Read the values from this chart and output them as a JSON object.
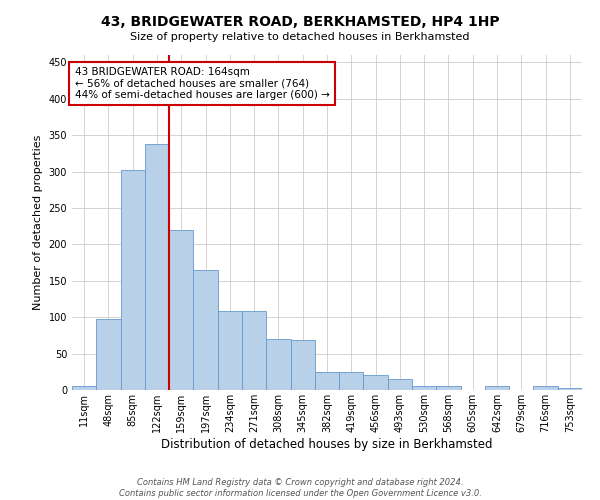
{
  "title": "43, BRIDGEWATER ROAD, BERKHAMSTED, HP4 1HP",
  "subtitle": "Size of property relative to detached houses in Berkhamsted",
  "xlabel": "Distribution of detached houses by size in Berkhamsted",
  "ylabel": "Number of detached properties",
  "bar_labels": [
    "11sqm",
    "48sqm",
    "85sqm",
    "122sqm",
    "159sqm",
    "197sqm",
    "234sqm",
    "271sqm",
    "308sqm",
    "345sqm",
    "382sqm",
    "419sqm",
    "456sqm",
    "493sqm",
    "530sqm",
    "568sqm",
    "605sqm",
    "642sqm",
    "679sqm",
    "716sqm",
    "753sqm"
  ],
  "bar_heights": [
    5,
    97,
    302,
    338,
    220,
    165,
    108,
    108,
    70,
    68,
    25,
    25,
    20,
    15,
    5,
    5,
    0,
    5,
    0,
    5,
    3
  ],
  "bar_color": "#b8d0e8",
  "bar_edge_color": "#6699cc",
  "grid_color": "#cccccc",
  "vline_color": "#cc0000",
  "vline_x": 3.5,
  "annotation_text": "43 BRIDGEWATER ROAD: 164sqm\n← 56% of detached houses are smaller (764)\n44% of semi-detached houses are larger (600) →",
  "annotation_box_color": "#ffffff",
  "annotation_box_edge": "#cc0000",
  "ylim": [
    0,
    460
  ],
  "yticks": [
    0,
    50,
    100,
    150,
    200,
    250,
    300,
    350,
    400,
    450
  ],
  "footnote1": "Contains HM Land Registry data © Crown copyright and database right 2024.",
  "footnote2": "Contains public sector information licensed under the Open Government Licence v3.0.",
  "background_color": "#ffffff",
  "fig_width": 6.0,
  "fig_height": 5.0,
  "title_fontsize": 10,
  "subtitle_fontsize": 8,
  "ylabel_fontsize": 8,
  "xlabel_fontsize": 8.5,
  "tick_fontsize": 7,
  "annot_fontsize": 7.5,
  "footnote_fontsize": 6
}
